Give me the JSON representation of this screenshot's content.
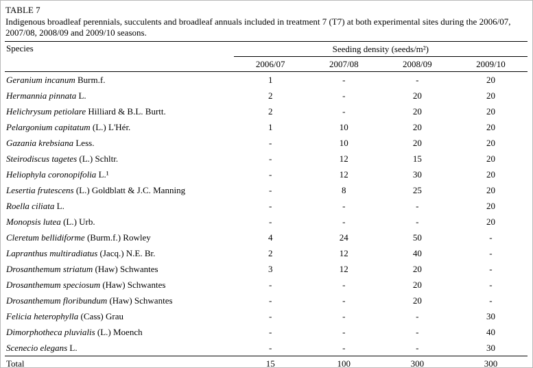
{
  "table_label": "TABLE 7",
  "caption": "Indigenous broadleaf perennials, succulents and broadleaf annuals included in treatment 7 (T7) at both experimental sites during the 2006/07, 2007/08, 2008/09 and 2009/10 seasons.",
  "header": {
    "species": "Species",
    "group": "Seeding density (seeds/m²)",
    "years": [
      "2006/07",
      "2007/08",
      "2008/09",
      "2009/10"
    ]
  },
  "rows": [
    {
      "name": "Geranium incanum",
      "authority": "Burm.f.",
      "values": [
        "1",
        "-",
        "-",
        "20"
      ]
    },
    {
      "name": "Hermannia pinnata",
      "authority": "L.",
      "values": [
        "2",
        "-",
        "20",
        "20"
      ]
    },
    {
      "name": "Helichrysum petiolare",
      "authority": "Hilliard & B.L. Burtt.",
      "values": [
        "2",
        "-",
        "20",
        "20"
      ]
    },
    {
      "name": "Pelargonium capitatum",
      "authority": "(L.) L'Hér.",
      "values": [
        "1",
        "10",
        "20",
        "20"
      ]
    },
    {
      "name": "Gazania krebsiana",
      "authority": "Less.",
      "values": [
        "-",
        "10",
        "20",
        "20"
      ]
    },
    {
      "name": "Steirodiscus tagetes",
      "authority": "(L.) Schltr.",
      "values": [
        "-",
        "12",
        "15",
        "20"
      ]
    },
    {
      "name": "Heliophyla coronopifolia",
      "authority": "L.¹",
      "values": [
        "-",
        "12",
        "30",
        "20"
      ]
    },
    {
      "name": "Lesertia frutescens",
      "authority": "(L.) Goldblatt & J.C. Manning",
      "values": [
        "-",
        "8",
        "25",
        "20"
      ]
    },
    {
      "name": "Roella ciliata",
      "authority": "L.",
      "values": [
        "-",
        "-",
        "-",
        "20"
      ]
    },
    {
      "name": "Monopsis lutea",
      "authority": "(L.) Urb.",
      "values": [
        "-",
        "-",
        "-",
        "20"
      ]
    },
    {
      "name": "Cleretum bellidiforme",
      "authority": "(Burm.f.) Rowley",
      "values": [
        "4",
        "24",
        "50",
        "-"
      ]
    },
    {
      "name": "Lapranthus multiradiatus",
      "authority": "(Jacq.) N.E. Br.",
      "values": [
        "2",
        "12",
        "40",
        "-"
      ]
    },
    {
      "name": "Drosanthemum striatum",
      "authority": "(Haw) Schwantes",
      "values": [
        "3",
        "12",
        "20",
        "-"
      ]
    },
    {
      "name": "Drosanthemum speciosum",
      "authority": "(Haw) Schwantes",
      "values": [
        "-",
        "-",
        "20",
        "-"
      ]
    },
    {
      "name": "Drosanthemum floribundum",
      "authority": "(Haw) Schwantes",
      "values": [
        "-",
        "-",
        "20",
        "-"
      ]
    },
    {
      "name": "Felicia heterophylla",
      "authority": "(Cass) Grau",
      "values": [
        "-",
        "-",
        "-",
        "30"
      ]
    },
    {
      "name": "Dimorphotheca pluvialis",
      "authority": "(L.) Moench",
      "values": [
        "-",
        "-",
        "-",
        "40"
      ]
    },
    {
      "name": "Scenecio elegans",
      "authority": "L.",
      "values": [
        "-",
        "-",
        "-",
        "30"
      ]
    }
  ],
  "total": {
    "label": "Total",
    "values": [
      "15",
      "100",
      "300",
      "300"
    ]
  }
}
